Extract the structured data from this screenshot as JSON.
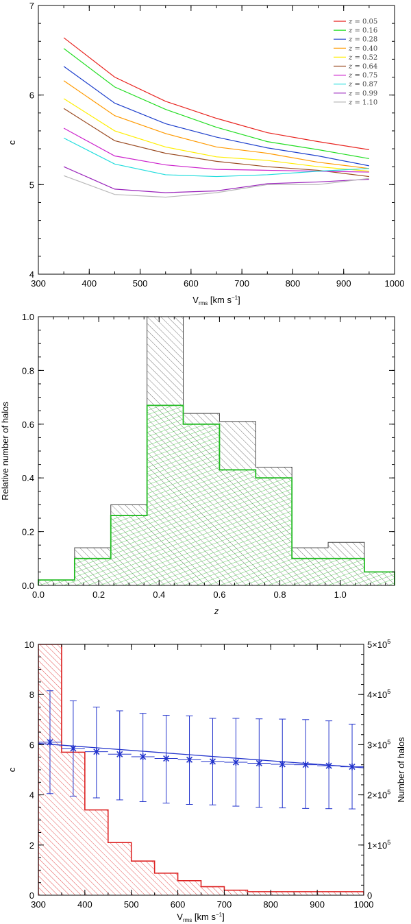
{
  "chart_data": [
    {
      "type": "line",
      "xlabel": "V",
      "xlabel_sub": "rms",
      "xlabel_unit": " [km s",
      "xlabel_exp": "−1",
      "xlabel_end": "]",
      "ylabel": "c",
      "xlim": [
        300,
        1000
      ],
      "ylim": [
        4,
        7
      ],
      "xticks": [
        300,
        400,
        500,
        600,
        700,
        800,
        900,
        1000
      ],
      "yticks": [
        4,
        5,
        6,
        7
      ],
      "legend_position": "top-right",
      "legend_var": "z",
      "x": [
        350,
        450,
        550,
        650,
        750,
        850,
        950
      ],
      "series": [
        {
          "name": "0.05",
          "color": "#e8231e",
          "values": [
            6.64,
            6.2,
            5.93,
            5.74,
            5.58,
            5.48,
            5.39
          ]
        },
        {
          "name": "0.16",
          "color": "#22dd22",
          "values": [
            6.52,
            6.09,
            5.84,
            5.64,
            5.48,
            5.39,
            5.29
          ]
        },
        {
          "name": "0.28",
          "color": "#1d3fcc",
          "values": [
            6.32,
            5.91,
            5.68,
            5.53,
            5.41,
            5.32,
            5.21
          ]
        },
        {
          "name": "0.40",
          "color": "#ff9a00",
          "values": [
            6.16,
            5.77,
            5.57,
            5.42,
            5.35,
            5.25,
            5.18
          ]
        },
        {
          "name": "0.52",
          "color": "#ffee00",
          "values": [
            5.96,
            5.6,
            5.42,
            5.31,
            5.27,
            5.2,
            5.15
          ]
        },
        {
          "name": "0.64",
          "color": "#9a4b22",
          "values": [
            5.85,
            5.49,
            5.35,
            5.26,
            5.2,
            5.16,
            5.09
          ]
        },
        {
          "name": "0.75",
          "color": "#cc22cc",
          "values": [
            5.63,
            5.32,
            5.22,
            5.17,
            5.16,
            5.15,
            5.14
          ]
        },
        {
          "name": "0.87",
          "color": "#22dddd",
          "values": [
            5.52,
            5.23,
            5.11,
            5.09,
            5.11,
            5.15,
            5.18
          ]
        },
        {
          "name": "0.99",
          "color": "#9922bb",
          "values": [
            5.2,
            4.95,
            4.91,
            4.93,
            5.01,
            5.03,
            5.06
          ]
        },
        {
          "name": "1.10",
          "color": "#b8b8b8",
          "values": [
            5.1,
            4.89,
            4.86,
            4.91,
            5.0,
            5.0,
            5.07
          ]
        }
      ]
    },
    {
      "type": "histogram",
      "xlabel": "z",
      "ylabel": "Relative number of halos",
      "xlim": [
        0,
        1.18
      ],
      "ylim": [
        0,
        1.0
      ],
      "xticks": [
        0.0,
        0.2,
        0.4,
        0.6,
        0.8,
        1.0
      ],
      "yticks": [
        0.0,
        0.2,
        0.4,
        0.6,
        0.8,
        1.0
      ],
      "bin_edges": [
        0,
        0.12,
        0.24,
        0.36,
        0.48,
        0.6,
        0.72,
        0.84,
        0.96,
        1.08,
        1.18
      ],
      "series": [
        {
          "color": "#444444",
          "style": "diagonal hatch",
          "values": [
            0.02,
            0.14,
            0.3,
            1.0,
            0.64,
            0.61,
            0.44,
            0.14,
            0.16,
            0.05
          ]
        },
        {
          "color": "#22bb22",
          "style": "horizontal hatch",
          "values": [
            0.02,
            0.1,
            0.26,
            0.67,
            0.6,
            0.43,
            0.4,
            0.1,
            0.1,
            0.05
          ]
        }
      ]
    },
    {
      "type": "histogram+errorbar",
      "xlabel": "V",
      "xlabel_sub": "rms",
      "xlabel_unit": " [km s",
      "xlabel_exp": "−1",
      "xlabel_end": "]",
      "ylabel": "c",
      "y2label": "Number of halos",
      "xlim": [
        300,
        1000
      ],
      "ylim": [
        0,
        10
      ],
      "y2lim": [
        0,
        500000
      ],
      "xticks": [
        300,
        400,
        500,
        600,
        700,
        800,
        900,
        1000
      ],
      "yticks": [
        0,
        2,
        4,
        6,
        8,
        10
      ],
      "y2ticks": [
        {
          "value": 0,
          "label": "0",
          "exp": ""
        },
        {
          "value": 100000,
          "label": "1×10",
          "exp": "5"
        },
        {
          "value": 200000,
          "label": "2×10",
          "exp": "5"
        },
        {
          "value": 300000,
          "label": "3×10",
          "exp": "5"
        },
        {
          "value": 400000,
          "label": "4×10",
          "exp": "5"
        },
        {
          "value": 500000,
          "label": "5×10",
          "exp": "5"
        }
      ],
      "histogram": {
        "color": "#dd2222",
        "bin_edges": [
          300,
          350,
          400,
          450,
          500,
          550,
          600,
          650,
          700,
          750,
          1000
        ],
        "values": [
          500000,
          285000,
          170000,
          105000,
          68000,
          44000,
          29000,
          17000,
          10000,
          7000
        ]
      },
      "points": {
        "color": "#2233cc",
        "x": [
          325,
          375,
          425,
          475,
          525,
          575,
          625,
          675,
          725,
          775,
          825,
          875,
          925,
          975
        ],
        "y": [
          6.1,
          5.85,
          5.72,
          5.62,
          5.52,
          5.45,
          5.4,
          5.33,
          5.3,
          5.26,
          5.22,
          5.2,
          5.16,
          5.12
        ],
        "err_low": [
          4.05,
          3.95,
          3.88,
          3.8,
          3.73,
          3.67,
          3.62,
          3.6,
          3.55,
          3.5,
          3.48,
          3.46,
          3.45,
          3.44
        ],
        "err_high": [
          8.15,
          7.75,
          7.5,
          7.35,
          7.25,
          7.17,
          7.15,
          7.05,
          7.05,
          7.03,
          7.02,
          7.0,
          6.95,
          6.82
        ]
      },
      "fit_line": {
        "x": [
          300,
          1000
        ],
        "y": [
          6.05,
          5.08
        ]
      }
    }
  ]
}
